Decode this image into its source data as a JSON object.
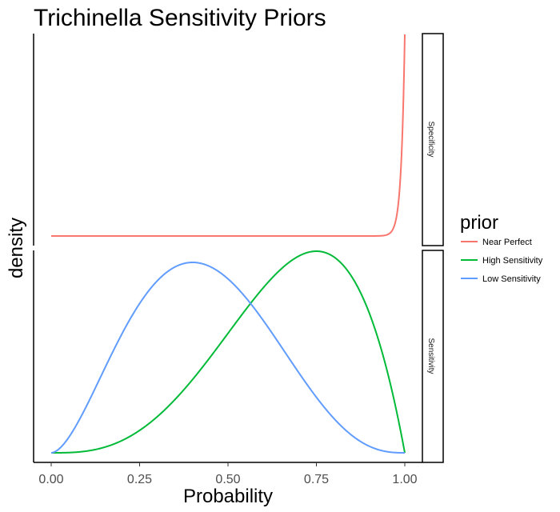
{
  "chart_data": {
    "type": "line",
    "title": "Trichinella Sensitivity Priors",
    "xlabel": "Probability",
    "ylabel": "density",
    "xlim": [
      0,
      1
    ],
    "x_ticks": [
      "0.00",
      "0.25",
      "0.50",
      "0.75",
      "1.00"
    ],
    "x_tick_values": [
      0,
      0.25,
      0.5,
      0.75,
      1.0
    ],
    "legend": {
      "title": "prior",
      "placement": "right",
      "entries": [
        "Near Perfect",
        "High Sensitivity",
        "Low Sensitivity"
      ]
    },
    "grid": false,
    "facets": [
      {
        "label": "Specificity",
        "series": [
          {
            "name": "Near Perfect",
            "color": "#F8766D",
            "distribution": "beta",
            "alpha": 100,
            "beta": 1
          }
        ]
      },
      {
        "label": "Sensitivity",
        "series": [
          {
            "name": "High Sensitivity",
            "color": "#00BA38",
            "distribution": "beta",
            "alpha": 4,
            "beta": 2
          },
          {
            "name": "Low Sensitivity",
            "color": "#619CFF",
            "distribution": "beta",
            "alpha": 2.8,
            "beta": 3.7
          }
        ]
      }
    ]
  }
}
